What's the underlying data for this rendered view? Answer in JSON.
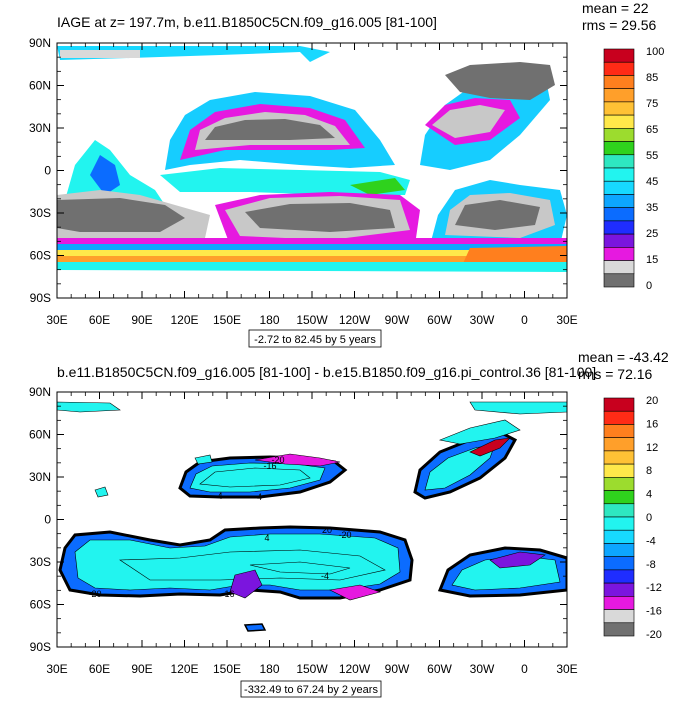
{
  "chart_data": [
    {
      "type": "heatmap",
      "title": "IAGE at z= 197.7m, b.e11.B1850C5CN.f09_g16.005 [81-100]",
      "stats": {
        "mean": "mean = 22",
        "rms": "rms = 29.56"
      },
      "x_ticks": [
        "30E",
        "60E",
        "90E",
        "120E",
        "150E",
        "180",
        "150W",
        "120W",
        "90W",
        "60W",
        "30W",
        "0",
        "30E"
      ],
      "y_ticks": [
        "90N",
        "60N",
        "30N",
        "0",
        "30S",
        "60S",
        "90S"
      ],
      "xlim": [
        30,
        390
      ],
      "ylim": [
        -90,
        90
      ],
      "range_label": "-2.72 to 82.45 by 5 years",
      "colorbar": {
        "labels": [
          "100",
          "85",
          "75",
          "65",
          "55",
          "45",
          "35",
          "25",
          "15",
          "0"
        ],
        "colors": [
          "#c8001e",
          "#ff2b16",
          "#ff7f1e",
          "#ff9f2a",
          "#ffc135",
          "#ffe84a",
          "#9cdc2e",
          "#2fd21d",
          "#2ee7c1",
          "#22f4ef",
          "#17d9ff",
          "#0da6ff",
          "#0b6cff",
          "#1f2dff",
          "#7b15de",
          "#e619e0",
          "#d9d9d9",
          "#707070"
        ]
      }
    },
    {
      "type": "heatmap",
      "title": "b.e11.B1850C5CN.f09_g16.005 [81-100] - b.e15.B1850.f09_g16.pi_control.36 [81-100]",
      "stats": {
        "mean": "mean = -43.42",
        "rms": "rms = 72.16"
      },
      "x_ticks": [
        "30E",
        "60E",
        "90E",
        "120E",
        "150E",
        "180",
        "150W",
        "120W",
        "90W",
        "60W",
        "30W",
        "0",
        "30E"
      ],
      "y_ticks": [
        "90N",
        "60N",
        "30N",
        "0",
        "30S",
        "60S",
        "90S"
      ],
      "xlim": [
        30,
        390
      ],
      "ylim": [
        -90,
        90
      ],
      "range_label": "-332.49 to 67.24 by 2 years",
      "contour_labels": [
        "-20",
        "4",
        "-4",
        "-16",
        "20",
        "-20",
        "4",
        "-4",
        "-16",
        "-20"
      ],
      "colorbar": {
        "labels": [
          "20",
          "16",
          "12",
          "8",
          "4",
          "0",
          "-4",
          "-8",
          "-12",
          "-16",
          "-20"
        ],
        "colors": [
          "#c8001e",
          "#ff2b16",
          "#ff7f1e",
          "#ff9f2a",
          "#ffc135",
          "#ffe84a",
          "#9cdc2e",
          "#2fd21d",
          "#2ee7c1",
          "#22f4ef",
          "#17d9ff",
          "#0da6ff",
          "#0b6cff",
          "#1f2dff",
          "#7b15de",
          "#e619e0",
          "#d9d9d9",
          "#707070"
        ]
      }
    }
  ]
}
